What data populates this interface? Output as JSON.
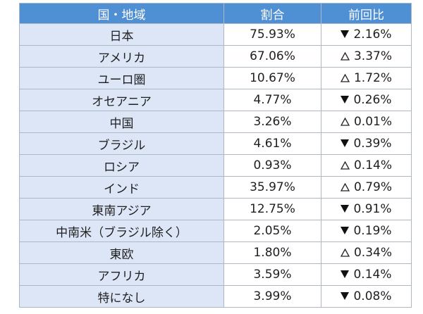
{
  "table": {
    "headers": [
      "国・地域",
      "割合",
      "前回比"
    ],
    "rows": [
      {
        "region": "日本",
        "share": "75.93%",
        "direction": "down",
        "change": "2.16%"
      },
      {
        "region": "アメリカ",
        "share": "67.06%",
        "direction": "up",
        "change": "3.37%"
      },
      {
        "region": "ユーロ圏",
        "share": "10.67%",
        "direction": "up",
        "change": "1.72%"
      },
      {
        "region": "オセアニア",
        "share": "4.77%",
        "direction": "down",
        "change": "0.26%"
      },
      {
        "region": "中国",
        "share": "3.26%",
        "direction": "up",
        "change": "0.01%"
      },
      {
        "region": "ブラジル",
        "share": "4.61%",
        "direction": "down",
        "change": "0.39%"
      },
      {
        "region": "ロシア",
        "share": "0.93%",
        "direction": "up",
        "change": "0.14%"
      },
      {
        "region": "インド",
        "share": "35.97%",
        "direction": "up",
        "change": "0.79%"
      },
      {
        "region": "東南アジア",
        "share": "12.75%",
        "direction": "down",
        "change": "0.91%"
      },
      {
        "region": "中南米（ブラジル除く）",
        "share": "2.05%",
        "direction": "down",
        "change": "0.19%"
      },
      {
        "region": "東欧",
        "share": "1.80%",
        "direction": "up",
        "change": "0.34%"
      },
      {
        "region": "アフリカ",
        "share": "3.59%",
        "direction": "down",
        "change": "0.14%"
      },
      {
        "region": "特になし",
        "share": "3.99%",
        "direction": "down",
        "change": "0.08%"
      }
    ]
  },
  "marks": {
    "down_icon": "filled-down-triangle-icon",
    "up_icon": "outline-up-triangle-icon"
  },
  "colors": {
    "header_bg": "#4f8fd4",
    "header_text": "#ffffff",
    "region_bg": "#dde6f7",
    "border": "#aeb7c4"
  }
}
